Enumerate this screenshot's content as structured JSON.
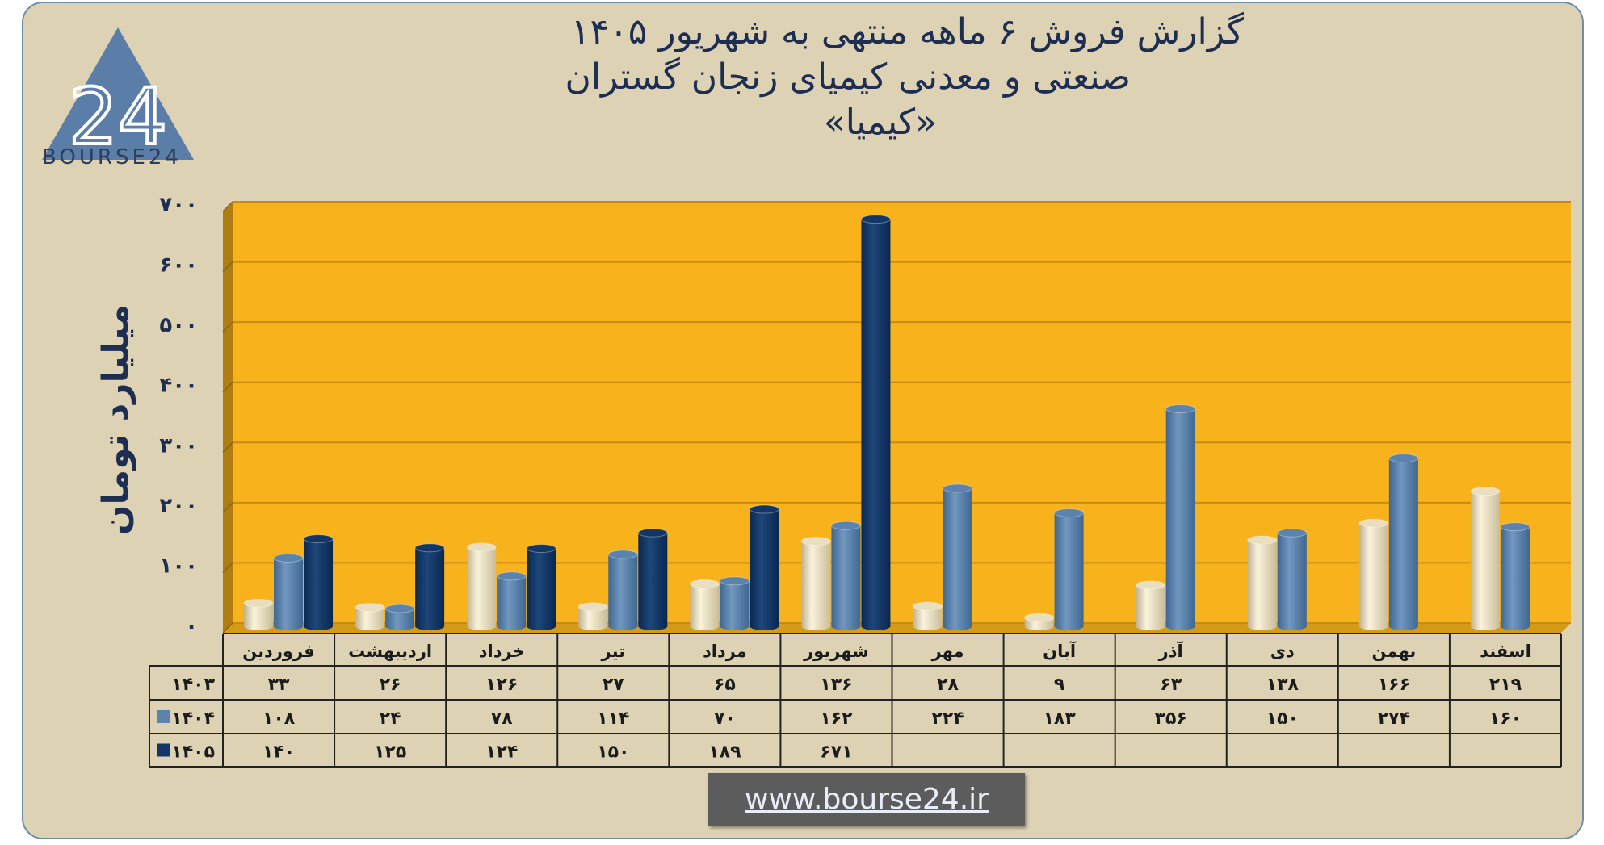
{
  "title": {
    "line1": "گزارش  فروش ۶ ماهه منتهی به شهریور ۱۴۰۵",
    "line2": "صنعتی و معدنی کیمیای زنجان گستران",
    "line3": "«کیمیا»"
  },
  "logo": {
    "brand": "BOURSE24",
    "mark_text": "24",
    "color": "#5a7ea8"
  },
  "website": "www.bourse24.ir",
  "colors": {
    "plot_background": "#f7b21c",
    "series_1403": "#e9dfc0",
    "series_1404": "#5b83ad",
    "series_1405": "#123766",
    "frame_background": "#ddd3b4",
    "axis_text": "#1e2d52"
  },
  "chart_data": {
    "type": "bar",
    "categories": [
      "فروردین",
      "اردیبهشت",
      "خرداد",
      "تیر",
      "مرداد",
      "شهریور",
      "مهر",
      "آبان",
      "آذر",
      "دی",
      "بهمن",
      "اسفند"
    ],
    "ylabel": "میلیارد تومان",
    "ylim": [
      0,
      700
    ],
    "yticks": [
      0,
      100,
      200,
      300,
      400,
      500,
      600,
      700
    ],
    "ytick_labels": [
      "۰",
      "۱۰۰",
      "۲۰۰",
      "۳۰۰",
      "۴۰۰",
      "۵۰۰",
      "۶۰۰",
      "۷۰۰"
    ],
    "grid": true,
    "series": [
      {
        "name": "۱۴۰۳",
        "values": [
          33,
          26,
          126,
          27,
          65,
          136,
          28,
          9,
          63,
          138,
          166,
          219
        ],
        "labels": [
          "۳۳",
          "۲۶",
          "۱۲۶",
          "۲۷",
          "۶۵",
          "۱۳۶",
          "۲۸",
          "۹",
          "۶۳",
          "۱۳۸",
          "۱۶۶",
          "۲۱۹"
        ]
      },
      {
        "name": "۱۴۰۴",
        "values": [
          108,
          24,
          78,
          114,
          70,
          162,
          224,
          183,
          356,
          150,
          274,
          160
        ],
        "labels": [
          "۱۰۸",
          "۲۴",
          "۷۸",
          "۱۱۴",
          "۷۰",
          "۱۶۲",
          "۲۲۴",
          "۱۸۳",
          "۳۵۶",
          "۱۵۰",
          "۲۷۴",
          "۱۶۰"
        ]
      },
      {
        "name": "۱۴۰۵",
        "values": [
          140,
          125,
          124,
          150,
          189,
          671,
          null,
          null,
          null,
          null,
          null,
          null
        ],
        "labels": [
          "۱۴۰",
          "۱۲۵",
          "۱۲۴",
          "۱۵۰",
          "۱۸۹",
          "۶۷۱",
          "",
          "",
          "",
          "",
          "",
          ""
        ]
      }
    ]
  }
}
